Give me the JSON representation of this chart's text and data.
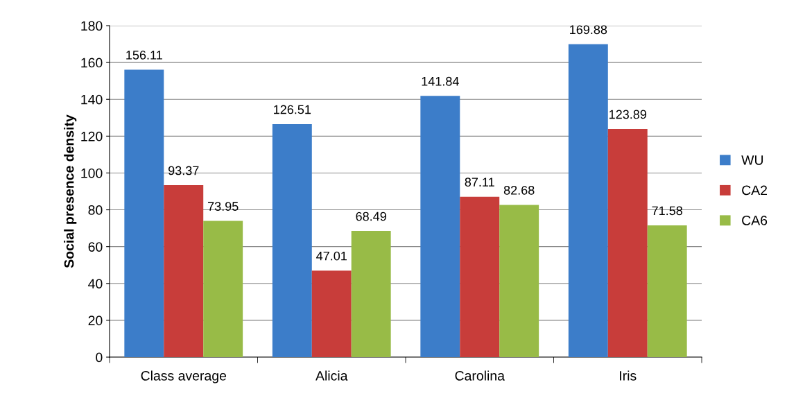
{
  "chart_data": {
    "type": "bar",
    "ylabel": "Social presence density",
    "categories": [
      "Class average",
      "Alicia",
      "Carolina",
      "Iris"
    ],
    "series": [
      {
        "name": "WU",
        "color": "#3c7dc9",
        "values": [
          156.11,
          126.51,
          141.84,
          169.88
        ]
      },
      {
        "name": "CA2",
        "color": "#c83d3a",
        "values": [
          93.37,
          47.01,
          87.11,
          123.89
        ]
      },
      {
        "name": "CA6",
        "color": "#98bb47",
        "values": [
          73.95,
          68.49,
          82.68,
          71.58
        ]
      }
    ],
    "ylim": [
      0,
      180
    ],
    "yticks": [
      0,
      20,
      40,
      60,
      80,
      100,
      120,
      140,
      160,
      180
    ],
    "grid": "y",
    "legend": "right",
    "data_labels": true
  }
}
